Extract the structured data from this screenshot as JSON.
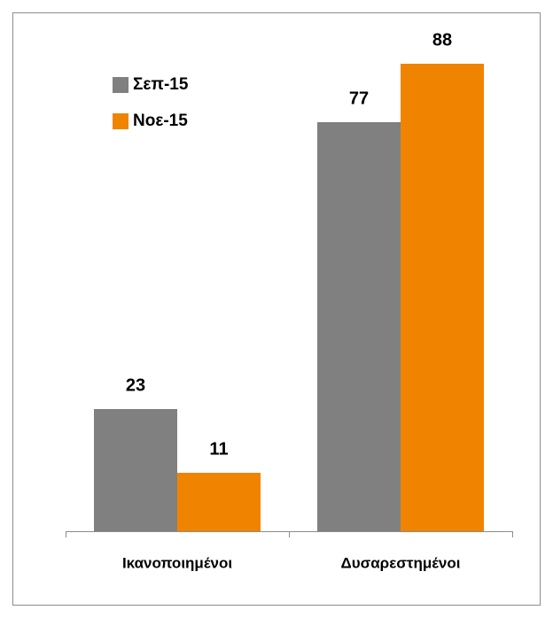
{
  "chart_data": {
    "type": "bar",
    "categories": [
      "Ικανοποιημένοι",
      "Δυσαρεστημένοι"
    ],
    "series": [
      {
        "name": "Σεπ-15",
        "color": "#808080",
        "values": [
          23,
          77
        ]
      },
      {
        "name": "Νοε-15",
        "color": "#f08300",
        "values": [
          11,
          88
        ]
      }
    ],
    "ylim": [
      0,
      100
    ],
    "legend": "top-left"
  }
}
